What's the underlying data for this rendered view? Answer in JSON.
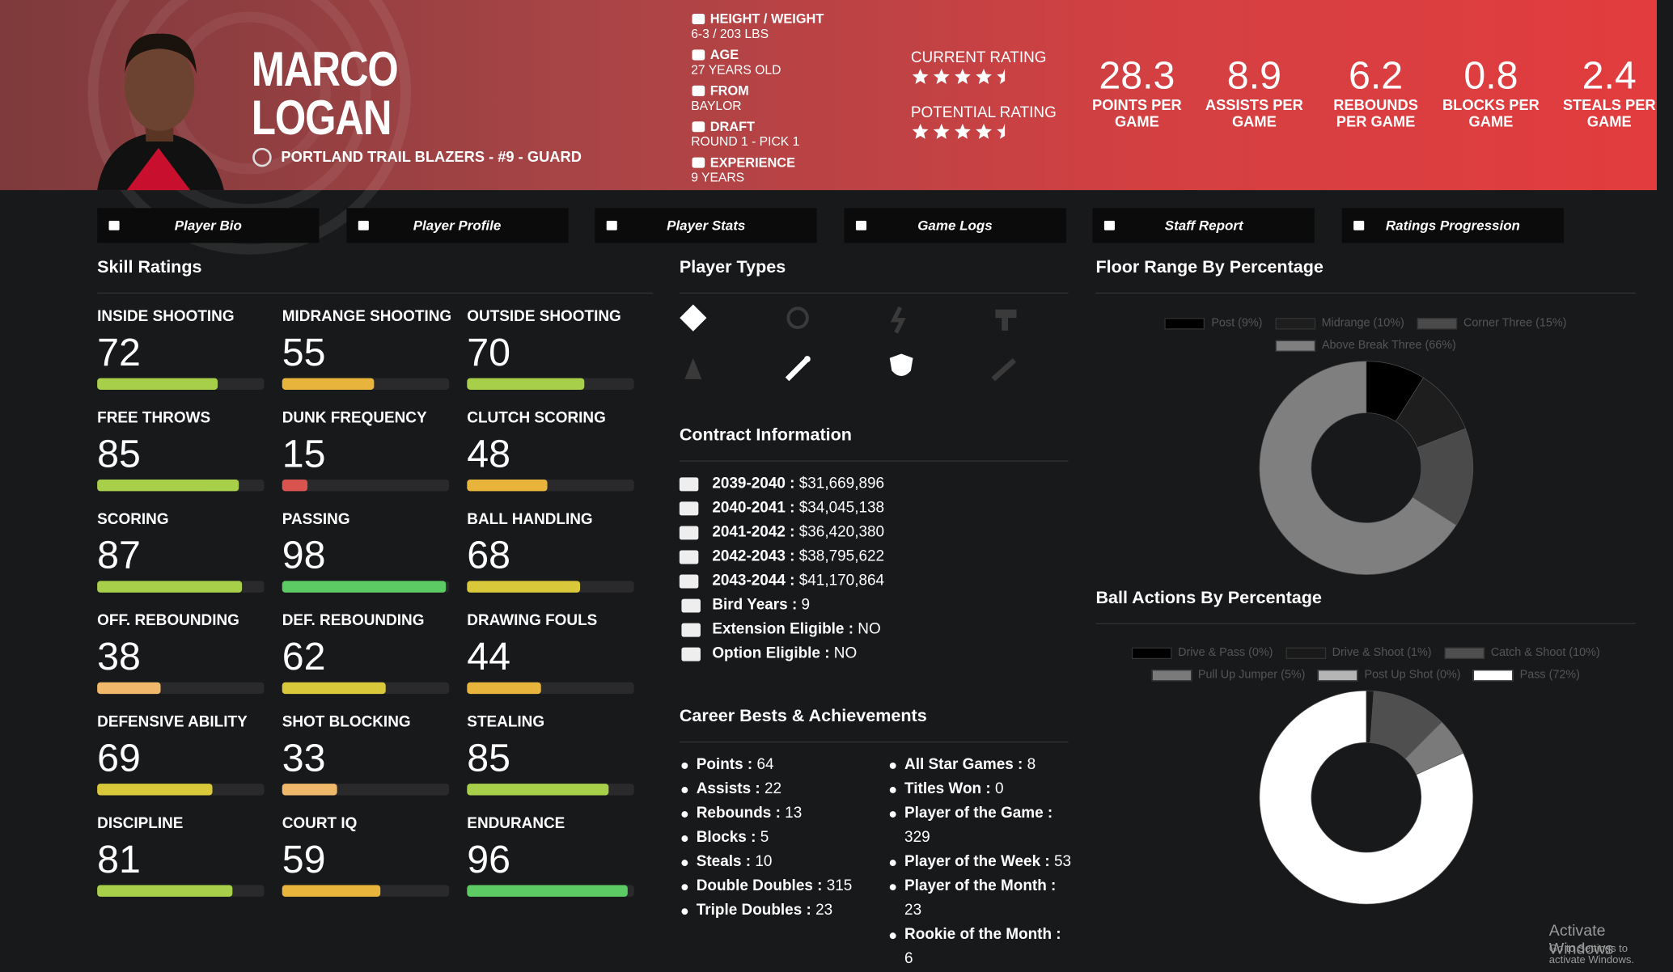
{
  "header": {
    "first_name": "MARCO",
    "last_name": "LOGAN",
    "team_line": "PORTLAND TRAIL BLAZERS - #9 - GUARD",
    "info": [
      {
        "label": "HEIGHT / WEIGHT",
        "value": "6-3 / 203 LBS"
      },
      {
        "label": "AGE",
        "value": "27 YEARS OLD"
      },
      {
        "label": "FROM",
        "value": "BAYLOR"
      },
      {
        "label": "DRAFT",
        "value": "ROUND 1 - PICK 1"
      },
      {
        "label": "EXPERIENCE",
        "value": "9 YEARS"
      }
    ],
    "current_rating": {
      "label": "CURRENT RATING",
      "stars": 4.5
    },
    "potential_rating": {
      "label": "POTENTIAL RATING",
      "stars": 4.5
    },
    "stats": [
      {
        "value": 28.3,
        "label": "POINTS PER GAME"
      },
      {
        "value": 8.9,
        "label": "ASSISTS PER GAME"
      },
      {
        "value": 6.2,
        "label": "REBOUNDS PER GAME"
      },
      {
        "value": 0.8,
        "label": "BLOCKS PER GAME"
      },
      {
        "value": 2.4,
        "label": "STEALS PER GAME"
      }
    ]
  },
  "nav": [
    "Player Bio",
    "Player Profile",
    "Player Stats",
    "Game Logs",
    "Staff Report",
    "Ratings Progression"
  ],
  "skills": {
    "title": "Skill Ratings",
    "items": [
      {
        "name": "INSIDE SHOOTING",
        "value": 72,
        "color": "#a8cf4a"
      },
      {
        "name": "MIDRANGE SHOOTING",
        "value": 55,
        "color": "#e8b43c"
      },
      {
        "name": "OUTSIDE SHOOTING",
        "value": 70,
        "color": "#a8cf4a"
      },
      {
        "name": "FREE THROWS",
        "value": 85,
        "color": "#a8cf4a"
      },
      {
        "name": "DUNK FREQUENCY",
        "value": 15,
        "color": "#d9534f"
      },
      {
        "name": "CLUTCH SCORING",
        "value": 48,
        "color": "#e8b43c"
      },
      {
        "name": "SCORING",
        "value": 87,
        "color": "#a8cf4a"
      },
      {
        "name": "PASSING",
        "value": 98,
        "color": "#5ccb63"
      },
      {
        "name": "BALL HANDLING",
        "value": 68,
        "color": "#d8c83a"
      },
      {
        "name": "OFF. REBOUNDING",
        "value": 38,
        "color": "#f0b86a"
      },
      {
        "name": "DEF. REBOUNDING",
        "value": 62,
        "color": "#d8c83a"
      },
      {
        "name": "DRAWING FOULS",
        "value": 44,
        "color": "#e8b43c"
      },
      {
        "name": "DEFENSIVE ABILITY",
        "value": 69,
        "color": "#d8c83a"
      },
      {
        "name": "SHOT BLOCKING",
        "value": 33,
        "color": "#f0b86a"
      },
      {
        "name": "STEALING",
        "value": 85,
        "color": "#a8cf4a"
      },
      {
        "name": "DISCIPLINE",
        "value": 81,
        "color": "#a8cf4a"
      },
      {
        "name": "COURT IQ",
        "value": 59,
        "color": "#e8b43c"
      },
      {
        "name": "ENDURANCE",
        "value": 96,
        "color": "#5ccb63"
      }
    ]
  },
  "player_types": {
    "title": "Player Types"
  },
  "contract": {
    "title": "Contract Information",
    "years": [
      {
        "season": "2039-2040",
        "amount": "$31,669,896"
      },
      {
        "season": "2040-2041",
        "amount": "$34,045,138"
      },
      {
        "season": "2041-2042",
        "amount": "$36,420,380"
      },
      {
        "season": "2042-2043",
        "amount": "$38,795,622"
      },
      {
        "season": "2043-2044",
        "amount": "$41,170,864"
      }
    ],
    "details": [
      {
        "label": "Bird Years",
        "value": 9
      },
      {
        "label": "Extension Eligible",
        "value": "NO"
      },
      {
        "label": "Option Eligible",
        "value": "NO"
      }
    ]
  },
  "career": {
    "title": "Career Bests & Achievements",
    "left": [
      {
        "label": "Points",
        "value": 64
      },
      {
        "label": "Assists",
        "value": 22
      },
      {
        "label": "Rebounds",
        "value": 13
      },
      {
        "label": "Blocks",
        "value": 5
      },
      {
        "label": "Steals",
        "value": 10
      },
      {
        "label": "Double Doubles",
        "value": 315
      },
      {
        "label": "Triple Doubles",
        "value": 23
      }
    ],
    "right": [
      {
        "label": "All Star Games",
        "value": 8
      },
      {
        "label": "Titles Won",
        "value": 0
      },
      {
        "label": "Player of the Game",
        "value": 329
      },
      {
        "label": "Player of the Week",
        "value": 53
      },
      {
        "label": "Player of the Month",
        "value": 23
      },
      {
        "label": "Rookie of the Month",
        "value": 6
      }
    ]
  },
  "floor_range": {
    "type": "donut",
    "title": "Floor Range By Percentage",
    "labels": [
      "Post (9%)",
      "Midrange (10%)",
      "Corner Three (15%)",
      "Above Break Three (66%)"
    ],
    "values": [
      9,
      10,
      15,
      66
    ],
    "colors": [
      "#000000",
      "#1e1e1e",
      "#4a4a4a",
      "#7f7f7f"
    ]
  },
  "ball_actions": {
    "type": "donut",
    "title": "Ball Actions By Percentage",
    "labels": [
      "Drive & Pass (0%)",
      "Drive & Shoot (1%)",
      "Catch & Shoot (10%)",
      "Pull Up Jumper (5%)",
      "Post Up Shot (0%)",
      "Pass (72%)"
    ],
    "values": [
      0,
      1,
      10,
      5,
      0,
      72
    ],
    "colors": [
      "#000000",
      "#1a1a1a",
      "#4f4f4f",
      "#7a7a7a",
      "#b5b5b5",
      "#ffffff"
    ]
  },
  "watermark": {
    "title": "Activate Windows",
    "subtitle": "Go to Settings to activate Windows."
  }
}
